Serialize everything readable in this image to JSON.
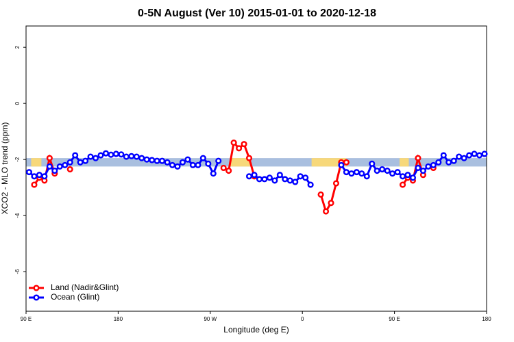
{
  "chart_data": {
    "type": "line",
    "title": "0-5N August (Ver 10)   2015-01-01 to 2020-12-18",
    "xlabel": "Longitude (deg E)",
    "ylabel": "XCO2 - MLO trend (ppm)",
    "xlim": [
      90,
      540
    ],
    "ylim": [
      -7.41,
      2.76
    ],
    "xticks": [
      {
        "value": 90,
        "label": "90 E"
      },
      180,
      {
        "value": 270,
        "label": "90 W"
      },
      {
        "value": 360,
        "label": "0"
      },
      {
        "value": 450,
        "label": "90 E"
      },
      {
        "value": 540,
        "label": "180"
      }
    ],
    "yticks": [
      -6,
      -4,
      -2,
      0,
      2
    ],
    "legend": "bottom-left",
    "band": {
      "range": [
        -2.25,
        -1.95
      ],
      "color": "#a9bfdf",
      "land_color": "#f7d87a",
      "land_spans": [
        [
          95,
          105
        ],
        [
          289,
          309
        ],
        [
          369,
          403
        ],
        [
          455,
          464
        ]
      ]
    },
    "series": [
      {
        "name": "Land (Nadir&Glint)",
        "color": "#ff0000",
        "x": [
          98,
          103,
          108,
          113,
          118,
          123,
          128,
          133,
          138,
          283,
          288,
          293,
          298,
          303,
          308,
          313,
          318,
          378,
          383,
          388,
          393,
          398,
          403,
          408,
          458,
          463,
          468,
          473,
          478,
          483,
          488
        ],
        "values": [
          -2.9,
          -2.65,
          -2.75,
          -1.95,
          -2.5,
          null,
          null,
          -2.35,
          null,
          -2.3,
          -2.4,
          -1.4,
          -1.6,
          -1.45,
          -1.95,
          -2.6,
          null,
          -3.25,
          -3.85,
          -3.55,
          -2.85,
          -2.1,
          -2.1,
          null,
          -2.9,
          -2.65,
          -2.75,
          -1.95,
          -2.55,
          null,
          -2.3
        ]
      },
      {
        "name": "Ocean (Glint)",
        "color": "#0000ff",
        "x": [
          93,
          98,
          103,
          108,
          113,
          118,
          123,
          128,
          133,
          138,
          143,
          148,
          153,
          158,
          163,
          168,
          173,
          178,
          183,
          188,
          193,
          198,
          203,
          208,
          213,
          218,
          223,
          228,
          233,
          238,
          243,
          248,
          253,
          258,
          263,
          268,
          273,
          278,
          283,
          288,
          293,
          298,
          303,
          308,
          313,
          318,
          323,
          328,
          333,
          338,
          343,
          348,
          353,
          358,
          363,
          368,
          373,
          378,
          383,
          388,
          393,
          398,
          403,
          408,
          413,
          418,
          423,
          428,
          433,
          438,
          443,
          448,
          453,
          458,
          463,
          468,
          473,
          478,
          483,
          488,
          493,
          498,
          503,
          508,
          513,
          518,
          523,
          528,
          533,
          538
        ],
        "values": [
          -2.45,
          -2.6,
          -2.55,
          -2.6,
          -2.25,
          -2.4,
          -2.25,
          -2.2,
          -2.1,
          -1.85,
          -2.1,
          -2.05,
          -1.9,
          -1.95,
          -1.85,
          -1.78,
          -1.83,
          -1.8,
          -1.82,
          -1.9,
          -1.88,
          -1.9,
          -1.95,
          -2.0,
          -2.02,
          -2.05,
          -2.05,
          -2.1,
          -2.2,
          -2.25,
          -2.1,
          -2.0,
          -2.2,
          -2.2,
          -1.95,
          -2.15,
          -2.5,
          -2.05,
          null,
          null,
          null,
          null,
          null,
          -2.6,
          -2.55,
          -2.7,
          -2.7,
          -2.65,
          -2.75,
          -2.55,
          -2.7,
          -2.75,
          -2.8,
          -2.6,
          -2.65,
          -2.9,
          null,
          null,
          null,
          null,
          null,
          -2.2,
          -2.45,
          -2.5,
          -2.45,
          -2.5,
          -2.6,
          -2.15,
          -2.4,
          -2.35,
          -2.4,
          -2.5,
          -2.45,
          -2.6,
          -2.55,
          -2.65,
          -2.3,
          -2.4,
          -2.25,
          -2.2,
          -2.1,
          -1.85,
          -2.1,
          -2.05,
          -1.9,
          -1.95,
          -1.85,
          -1.8,
          -1.85,
          -1.8
        ]
      }
    ]
  }
}
